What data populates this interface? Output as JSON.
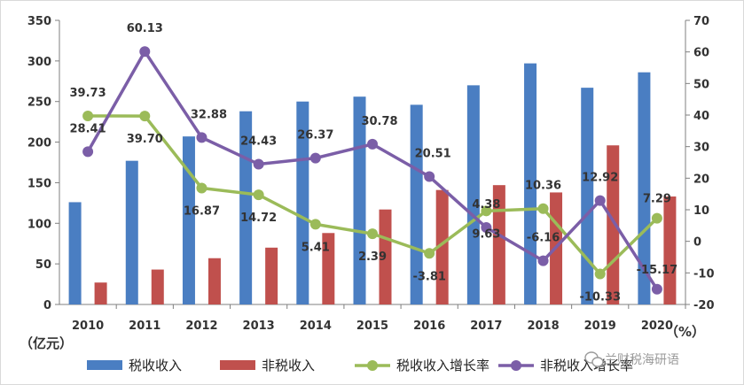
{
  "chart_data": {
    "type": "bar",
    "title": "",
    "categories": [
      "2010",
      "2011",
      "2012",
      "2013",
      "2014",
      "2015",
      "2016",
      "2017",
      "2018",
      "2019",
      "2020"
    ],
    "y_left": {
      "label": "（亿元）",
      "ylim": [
        0,
        350
      ],
      "ticks": [
        "0",
        "50",
        "100",
        "150",
        "200",
        "250",
        "300",
        "350"
      ]
    },
    "y_right": {
      "label": "（%）",
      "ylim": [
        -20,
        70
      ],
      "ticks": [
        "-20",
        "-10",
        "0",
        "10",
        "20",
        "30",
        "40",
        "50",
        "60",
        "70"
      ]
    },
    "grid": false,
    "legend_position": "bottom",
    "series": [
      {
        "name": "税收收入",
        "type": "bar",
        "axis": "left",
        "color": "#4A7EC2",
        "values": [
          126,
          177,
          207,
          238,
          250,
          256,
          246,
          270,
          297,
          267,
          286
        ]
      },
      {
        "name": "非税收入",
        "type": "bar",
        "axis": "left",
        "color": "#C0504D",
        "values": [
          27,
          43,
          57,
          70,
          88,
          117,
          141,
          147,
          138,
          196,
          133
        ]
      },
      {
        "name": "税收收入增长率",
        "type": "line",
        "axis": "right",
        "color": "#9BBB59",
        "values": [
          39.73,
          39.7,
          16.87,
          14.72,
          5.41,
          2.39,
          -3.81,
          9.63,
          10.36,
          -10.33,
          7.29
        ],
        "labels": [
          "39.73",
          "39.70",
          "16.87",
          "14.72",
          "5.41",
          "2.39",
          "-3.81",
          "9.63",
          "10.36",
          "-10.33",
          "7.29"
        ]
      },
      {
        "name": "非税收入增长率",
        "type": "line",
        "axis": "right",
        "color": "#7B5EA7",
        "values": [
          28.41,
          60.13,
          32.88,
          24.43,
          26.37,
          30.78,
          20.51,
          4.38,
          -6.16,
          12.92,
          -15.17
        ],
        "labels": [
          "28.41",
          "60.13",
          "32.88",
          "24.43",
          "26.37",
          "30.78",
          "20.51",
          "4.38",
          "-6.16",
          "12.92",
          "-15.17"
        ]
      }
    ]
  },
  "watermark": "兰财税海研语",
  "watermark_icon": "wechat-icon"
}
